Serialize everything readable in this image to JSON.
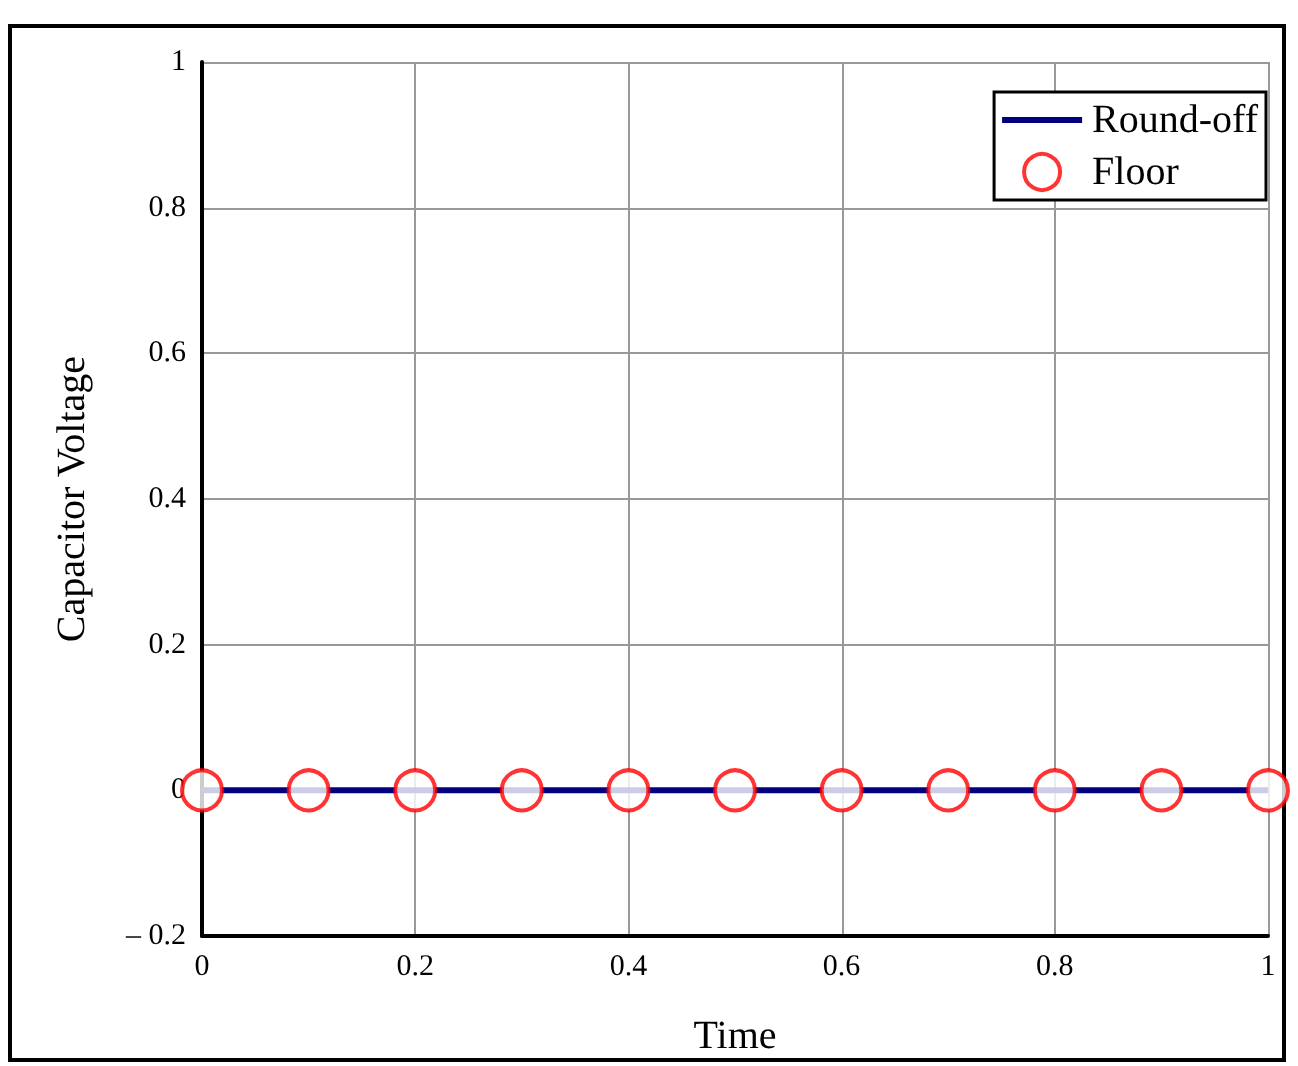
{
  "chart_data": {
    "type": "line",
    "xlabel": "Time",
    "ylabel": "Capacitor Voltage",
    "xlim": [
      0,
      1
    ],
    "xticks": [
      0,
      0.2,
      0.4,
      0.6,
      0.8,
      1
    ],
    "ylim": [
      -0.2,
      1
    ],
    "yticks": [
      {
        "value": -0.2,
        "label": "– 0.2"
      },
      0,
      0.2,
      0.4,
      0.6,
      0.8,
      1
    ],
    "grid": true,
    "legend": "top right",
    "series": [
      {
        "name": "Round-off",
        "color": "#000080",
        "marker": "none",
        "line_style": "solid",
        "x": [
          0,
          1
        ],
        "values": [
          0,
          0
        ]
      },
      {
        "name": "Floor",
        "type": "scatter",
        "color": "#ff0000",
        "marker": "circle",
        "x": [
          0,
          0.1,
          0.2,
          0.3,
          0.4,
          0.5,
          0.6,
          0.7,
          0.8,
          0.9,
          1
        ],
        "values": [
          0,
          0,
          0,
          0,
          0,
          0,
          0,
          0,
          0,
          0,
          0
        ]
      }
    ]
  }
}
